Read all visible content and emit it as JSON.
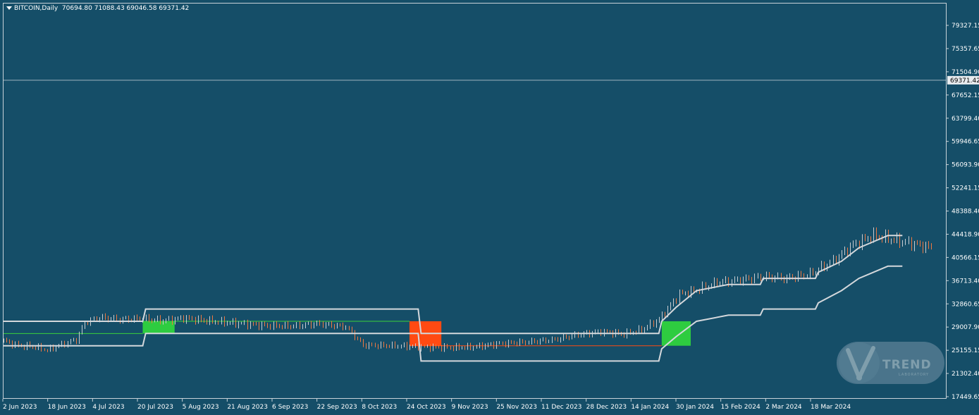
{
  "header": {
    "symbol_label": "BITCOIN,Daily",
    "ohlc": "70694.80 71088.43 69046.58 69371.42"
  },
  "colors": {
    "background": "#154e68",
    "channel": "#d4d8dc",
    "up_box": "#2ecc40",
    "down_box": "#ff4a12",
    "bull_candle": "#c8cdd2",
    "bear_candle": "#f07840",
    "midline": "#3ad13a",
    "price_line": "#9fb3bf"
  },
  "chart_data": {
    "type": "candlestick",
    "symbol": "BITCOIN",
    "timeframe": "Daily",
    "y_ticks": [
      "79327.15",
      "75357.65",
      "71504.90",
      "67652.15",
      "63799.40",
      "59946.65",
      "56093.90",
      "52241.15",
      "48388.40",
      "44418.90",
      "40566.15",
      "36713.40",
      "32860.65",
      "29007.90",
      "25155.15",
      "21302.40",
      "17449.65"
    ],
    "y_range": [
      17449.65,
      81900
    ],
    "x_ticks": [
      "2 Jun 2023",
      "18 Jun 2023",
      "4 Jul 2023",
      "20 Jul 2023",
      "5 Aug 2023",
      "21 Aug 2023",
      "6 Sep 2023",
      "22 Sep 2023",
      "8 Oct 2023",
      "24 Oct 2023",
      "9 Nov 2023",
      "25 Nov 2023",
      "11 Dec 2023",
      "28 Dec 2023",
      "14 Jan 2024",
      "30 Jan 2024",
      "15 Feb 2024",
      "2 Mar 2024",
      "18 Mar 2024"
    ],
    "x_range_days": [
      0,
      325
    ],
    "current_price": 69371.42,
    "current_price_label": "69371.42",
    "open": 70694.8,
    "high": 71088.43,
    "low": 69046.58,
    "close": 69371.42,
    "channel": {
      "upper": [
        [
          0,
          30000
        ],
        [
          48,
          30000
        ],
        [
          49,
          32000
        ],
        [
          143,
          32000
        ],
        [
          144,
          28000
        ],
        [
          226,
          28000
        ],
        [
          227,
          30000
        ],
        [
          232,
          32300
        ],
        [
          239,
          35000
        ],
        [
          250,
          36000
        ],
        [
          261,
          36000
        ],
        [
          262,
          37000
        ],
        [
          280,
          37000
        ],
        [
          281,
          38000
        ],
        [
          289,
          39800
        ],
        [
          295,
          42000
        ],
        [
          300,
          43000
        ],
        [
          305,
          44000
        ],
        [
          310,
          44000
        ]
      ],
      "lower": [
        [
          0,
          26000
        ],
        [
          48,
          26000
        ],
        [
          49,
          28000
        ],
        [
          143,
          28000
        ],
        [
          144,
          23500
        ],
        [
          226,
          23500
        ],
        [
          227,
          25500
        ],
        [
          232,
          27500
        ],
        [
          239,
          30000
        ],
        [
          250,
          31000
        ],
        [
          261,
          31000
        ],
        [
          262,
          32000
        ],
        [
          280,
          32000
        ],
        [
          281,
          33000
        ],
        [
          289,
          35000
        ],
        [
          295,
          37000
        ],
        [
          300,
          38000
        ],
        [
          305,
          39000
        ],
        [
          310,
          39000
        ]
      ]
    },
    "boxes": [
      {
        "start": 48,
        "end": 59,
        "low": 28000,
        "high": 30000,
        "dir": "up"
      },
      {
        "start": 140,
        "end": 151,
        "low": 26000,
        "high": 30000,
        "dir": "down"
      },
      {
        "start": 227,
        "end": 237,
        "low": 26000,
        "high": 30000,
        "dir": "up"
      }
    ],
    "midline_segments": [
      {
        "start": 0,
        "end": 48,
        "y": 28000,
        "dir": "up"
      },
      {
        "start": 48,
        "end": 140,
        "y": 30000,
        "dir": "up"
      },
      {
        "start": 140,
        "end": 227,
        "y": 26000,
        "dir": "down"
      }
    ],
    "ohlc_series": [],
    "price_path": [
      [
        0,
        26800
      ],
      [
        5,
        26000
      ],
      [
        10,
        25900
      ],
      [
        15,
        25300
      ],
      [
        20,
        26200
      ],
      [
        25,
        27000
      ],
      [
        28,
        29800
      ],
      [
        33,
        30600
      ],
      [
        40,
        30300
      ],
      [
        48,
        30400
      ],
      [
        55,
        30100
      ],
      [
        62,
        30500
      ],
      [
        72,
        30000
      ],
      [
        80,
        29700
      ],
      [
        90,
        29300
      ],
      [
        100,
        29200
      ],
      [
        108,
        29600
      ],
      [
        118,
        29100
      ],
      [
        124,
        26100
      ],
      [
        135,
        26000
      ],
      [
        145,
        25800
      ],
      [
        155,
        25700
      ],
      [
        162,
        25800
      ],
      [
        170,
        26300
      ],
      [
        180,
        26600
      ],
      [
        190,
        27000
      ],
      [
        198,
        27800
      ],
      [
        206,
        28300
      ],
      [
        214,
        27900
      ],
      [
        220,
        28600
      ],
      [
        226,
        30300
      ],
      [
        229,
        32000
      ],
      [
        233,
        34400
      ],
      [
        238,
        34900
      ],
      [
        246,
        36300
      ],
      [
        255,
        36800
      ],
      [
        262,
        37300
      ],
      [
        270,
        37000
      ],
      [
        278,
        37700
      ],
      [
        286,
        39800
      ],
      [
        293,
        42500
      ],
      [
        300,
        44000
      ],
      [
        310,
        43000
      ],
      [
        320,
        42000
      ]
    ]
  }
}
